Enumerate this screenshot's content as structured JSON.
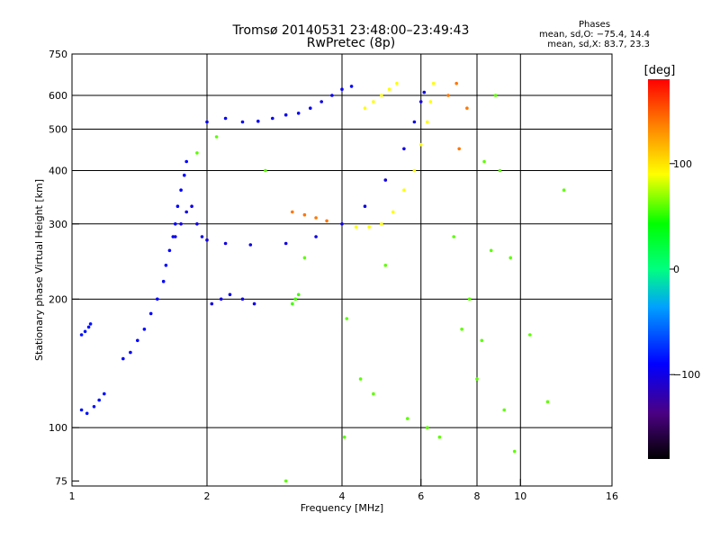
{
  "title": "Tromsø 20140531 23:48:00–23:49:43",
  "subtitle": "RwPretec (8p)",
  "phases_box": {
    "title": "Phases",
    "line1": "mean, sd,O: −75.4, 14.4",
    "line2": "mean, sd,X:  83.7, 23.3"
  },
  "chart_data": {
    "type": "scatter",
    "xlabel": "Frequency [MHz]",
    "ylabel": "Stationary phase Virtual Height [km]",
    "xscale": "log",
    "yscale": "log",
    "xlim": [
      1,
      16
    ],
    "ylim": [
      73,
      750
    ],
    "xticks": [
      1,
      2,
      4,
      6,
      8,
      10,
      16
    ],
    "xtick_labels": [
      "1",
      "2",
      "4",
      "6",
      "8",
      "10",
      "16"
    ],
    "yticks": [
      75,
      100,
      200,
      300,
      400,
      500,
      600,
      750
    ],
    "ytick_labels": [
      "75",
      "100",
      "200",
      "300",
      "400",
      "500",
      "600",
      "750"
    ],
    "grid": true,
    "colorbar": {
      "label": "[deg]",
      "range": [
        -180,
        180
      ],
      "ticks": [
        100,
        0,
        -100
      ],
      "tick_labels": [
        "100",
        "0",
        "−100"
      ]
    },
    "series": [
      {
        "color_value": -85,
        "points": [
          [
            1.05,
            165
          ],
          [
            1.07,
            168
          ],
          [
            1.09,
            172
          ],
          [
            1.1,
            175
          ],
          [
            1.05,
            110
          ],
          [
            1.08,
            108
          ],
          [
            1.12,
            112
          ],
          [
            1.15,
            116
          ],
          [
            1.18,
            120
          ]
        ]
      },
      {
        "color_value": -90,
        "points": [
          [
            1.3,
            145
          ],
          [
            1.35,
            150
          ],
          [
            1.4,
            160
          ],
          [
            1.45,
            170
          ],
          [
            1.5,
            185
          ],
          [
            1.55,
            200
          ],
          [
            1.6,
            220
          ],
          [
            1.62,
            240
          ],
          [
            1.65,
            260
          ],
          [
            1.68,
            280
          ],
          [
            1.7,
            300
          ],
          [
            1.72,
            330
          ],
          [
            1.75,
            360
          ],
          [
            1.78,
            390
          ],
          [
            1.8,
            420
          ]
        ]
      },
      {
        "color_value": -100,
        "points": [
          [
            1.7,
            280
          ],
          [
            1.75,
            300
          ],
          [
            1.8,
            320
          ],
          [
            1.85,
            330
          ],
          [
            1.9,
            300
          ],
          [
            1.95,
            280
          ],
          [
            2.0,
            275
          ],
          [
            2.2,
            270
          ],
          [
            2.5,
            268
          ],
          [
            3.0,
            270
          ],
          [
            3.5,
            280
          ],
          [
            4.0,
            300
          ],
          [
            4.5,
            330
          ],
          [
            5.0,
            380
          ],
          [
            5.5,
            450
          ],
          [
            5.8,
            520
          ],
          [
            6.0,
            580
          ],
          [
            6.1,
            610
          ]
        ]
      },
      {
        "color_value": -95,
        "points": [
          [
            2.0,
            520
          ],
          [
            2.2,
            530
          ],
          [
            2.4,
            520
          ],
          [
            2.6,
            522
          ],
          [
            2.8,
            530
          ],
          [
            3.0,
            540
          ],
          [
            3.2,
            545
          ],
          [
            3.4,
            560
          ],
          [
            3.6,
            580
          ],
          [
            3.8,
            600
          ],
          [
            4.0,
            620
          ],
          [
            4.2,
            630
          ]
        ]
      },
      {
        "color_value": 90,
        "points": [
          [
            4.5,
            560
          ],
          [
            4.7,
            580
          ],
          [
            4.9,
            600
          ],
          [
            5.1,
            620
          ],
          [
            5.3,
            640
          ],
          [
            4.3,
            295
          ],
          [
            4.6,
            295
          ],
          [
            4.9,
            300
          ],
          [
            5.2,
            320
          ],
          [
            5.5,
            360
          ],
          [
            5.8,
            400
          ],
          [
            6.0,
            460
          ],
          [
            6.2,
            520
          ],
          [
            6.3,
            580
          ],
          [
            6.4,
            640
          ]
        ]
      },
      {
        "color_value": 55,
        "points": [
          [
            3.1,
            195
          ],
          [
            3.15,
            200
          ],
          [
            3.2,
            205
          ]
        ]
      },
      {
        "color_value": 140,
        "points": [
          [
            3.1,
            320
          ],
          [
            3.3,
            315
          ],
          [
            3.5,
            310
          ],
          [
            3.7,
            305
          ],
          [
            6.9,
            600
          ],
          [
            7.2,
            640
          ],
          [
            7.6,
            560
          ],
          [
            7.3,
            450
          ]
        ]
      },
      {
        "color_value": -100,
        "points": [
          [
            2.05,
            195
          ],
          [
            2.15,
            200
          ],
          [
            2.25,
            205
          ],
          [
            2.4,
            200
          ],
          [
            2.55,
            195
          ]
        ]
      },
      {
        "color_value": 60,
        "points": [
          [
            1.9,
            440
          ],
          [
            2.1,
            480
          ],
          [
            2.7,
            400
          ],
          [
            3.3,
            250
          ],
          [
            4.1,
            180
          ],
          [
            4.4,
            130
          ],
          [
            4.7,
            120
          ],
          [
            5.0,
            240
          ],
          [
            5.6,
            105
          ],
          [
            6.2,
            100
          ],
          [
            6.6,
            95
          ],
          [
            7.1,
            280
          ],
          [
            7.4,
            170
          ],
          [
            7.7,
            200
          ],
          [
            8.2,
            160
          ],
          [
            8.6,
            260
          ],
          [
            9.2,
            110
          ],
          [
            9.5,
            250
          ],
          [
            10.5,
            165
          ],
          [
            12.5,
            360
          ],
          [
            11.5,
            115
          ],
          [
            9.7,
            88
          ],
          [
            4.05,
            95
          ],
          [
            3.0,
            75
          ],
          [
            8.0,
            130
          ],
          [
            8.3,
            420
          ],
          [
            9.0,
            400
          ],
          [
            8.8,
            600
          ]
        ]
      }
    ]
  }
}
